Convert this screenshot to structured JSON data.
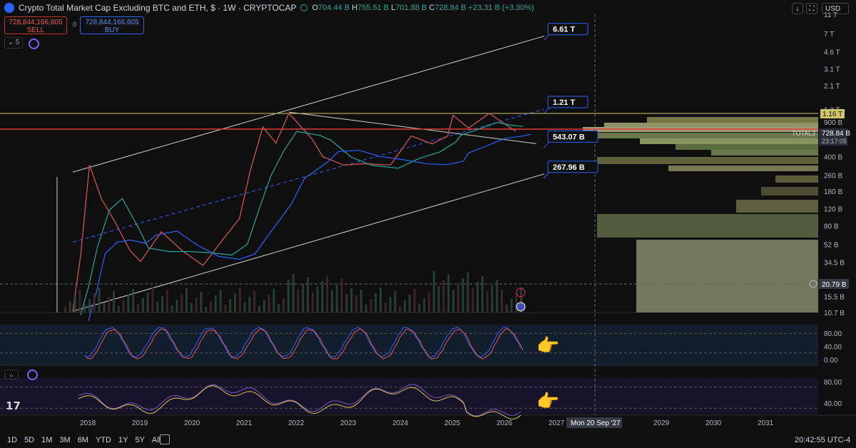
{
  "header": {
    "title": "Crypto Total Market Cap Excluding BTC and ETH, $ · 1W · CRYPTOCAP",
    "open_label": "O",
    "open": "704.44 B",
    "high_label": "H",
    "high": "755.51 B",
    "low_label": "L",
    "low": "701.88 B",
    "close_label": "C",
    "close": "728.84 B",
    "change": "+23.31 B (+3.30%)"
  },
  "trade": {
    "sell_price": "728,844,166,605",
    "sell_label": "SELL",
    "buy_price": "728,844,166,605",
    "buy_label": "BUY",
    "spread": "0"
  },
  "indicator_count": "5",
  "currency": "USD",
  "timeframes": [
    "1D",
    "5D",
    "1M",
    "3M",
    "6M",
    "YTD",
    "1Y",
    "5Y",
    "All"
  ],
  "clock": "20:42:55 UTC-4",
  "crosshair_date": "Mon 20 Sep '27",
  "crosshair_price": "20.79 B",
  "symbol_label": "TOTAL3",
  "last_price": "728.84 B",
  "countdown": "23:17:05",
  "resistance_label": "1.16 T",
  "colors": {
    "up": "#26a69a",
    "down": "#ef5350",
    "accent": "#2962ff",
    "resistance": "#d4c46a",
    "sr_line": "#e53935"
  },
  "chart_data": {
    "type": "line",
    "scale": "log",
    "x_ticks": [
      "2018",
      "2019",
      "2020",
      "2021",
      "2022",
      "2023",
      "2024",
      "2025",
      "2026",
      "2027",
      "2029",
      "2030",
      "2031"
    ],
    "y_ticks": [
      "11 T",
      "7 T",
      "4.6 T",
      "3.1 T",
      "2.1 T",
      "1.2 T",
      "900 B",
      "600 B",
      "400 B",
      "260 B",
      "180 B",
      "120 B",
      "80 B",
      "52 B",
      "34.5 B",
      "15.5 B",
      "10.7 B"
    ],
    "ylim": [
      "10.7 B",
      "11 T"
    ],
    "price_series": [
      {
        "x": 2017.7,
        "y": 11
      },
      {
        "x": 2017.85,
        "y": 40
      },
      {
        "x": 2018.02,
        "y": 330
      },
      {
        "x": 2018.25,
        "y": 150
      },
      {
        "x": 2018.5,
        "y": 90
      },
      {
        "x": 2018.8,
        "y": 45
      },
      {
        "x": 2019.0,
        "y": 35
      },
      {
        "x": 2019.4,
        "y": 70
      },
      {
        "x": 2019.8,
        "y": 45
      },
      {
        "x": 2020.2,
        "y": 32
      },
      {
        "x": 2020.6,
        "y": 60
      },
      {
        "x": 2020.9,
        "y": 95
      },
      {
        "x": 2021.1,
        "y": 280
      },
      {
        "x": 2021.35,
        "y": 800
      },
      {
        "x": 2021.6,
        "y": 550
      },
      {
        "x": 2021.85,
        "y": 1100
      },
      {
        "x": 2022.3,
        "y": 600
      },
      {
        "x": 2022.5,
        "y": 400
      },
      {
        "x": 2022.9,
        "y": 330
      },
      {
        "x": 2023.3,
        "y": 340
      },
      {
        "x": 2023.8,
        "y": 330
      },
      {
        "x": 2024.2,
        "y": 650
      },
      {
        "x": 2024.6,
        "y": 540
      },
      {
        "x": 2024.9,
        "y": 650
      },
      {
        "x": 2025.0,
        "y": 1050
      },
      {
        "x": 2025.3,
        "y": 780
      },
      {
        "x": 2025.7,
        "y": 1100
      },
      {
        "x": 2026.0,
        "y": 850
      },
      {
        "x": 2026.2,
        "y": 728.84
      }
    ],
    "levels": [
      {
        "label": "6.61 T",
        "value": 6610
      },
      {
        "label": "1.21 T",
        "value": 1210
      },
      {
        "label": "543.07 B",
        "value": 543.07
      },
      {
        "label": "267.96 B",
        "value": 267.96
      }
    ],
    "horizontal_lines": [
      {
        "name": "resistance",
        "value": 1160
      },
      {
        "name": "support-resistance",
        "value": 750
      },
      {
        "name": "crosshair",
        "value": 20.79
      }
    ],
    "trend_channel": {
      "upper": [
        {
          "x": 2017.7,
          "y": 280
        },
        {
          "x": 2026.75,
          "y": 6610
        }
      ],
      "lower": [
        {
          "x": 2017.7,
          "y": 11
        },
        {
          "x": 2026.75,
          "y": 267.96
        }
      ],
      "midline": [
        {
          "x": 2017.7,
          "y": 55
        },
        {
          "x": 2026.75,
          "y": 1210
        }
      ]
    },
    "descending_line": [
      {
        "x": 2021.85,
        "y": 1130
      },
      {
        "x": 2026.6,
        "y": 543.07
      }
    ],
    "oscillator_1": {
      "y_ticks": [
        "80.00",
        "40.00",
        "0.00"
      ],
      "ylim": [
        0,
        100
      ]
    },
    "oscillator_2": {
      "y_ticks": [
        "80.00",
        "40.00"
      ],
      "ylim": [
        25,
        95
      ]
    }
  }
}
